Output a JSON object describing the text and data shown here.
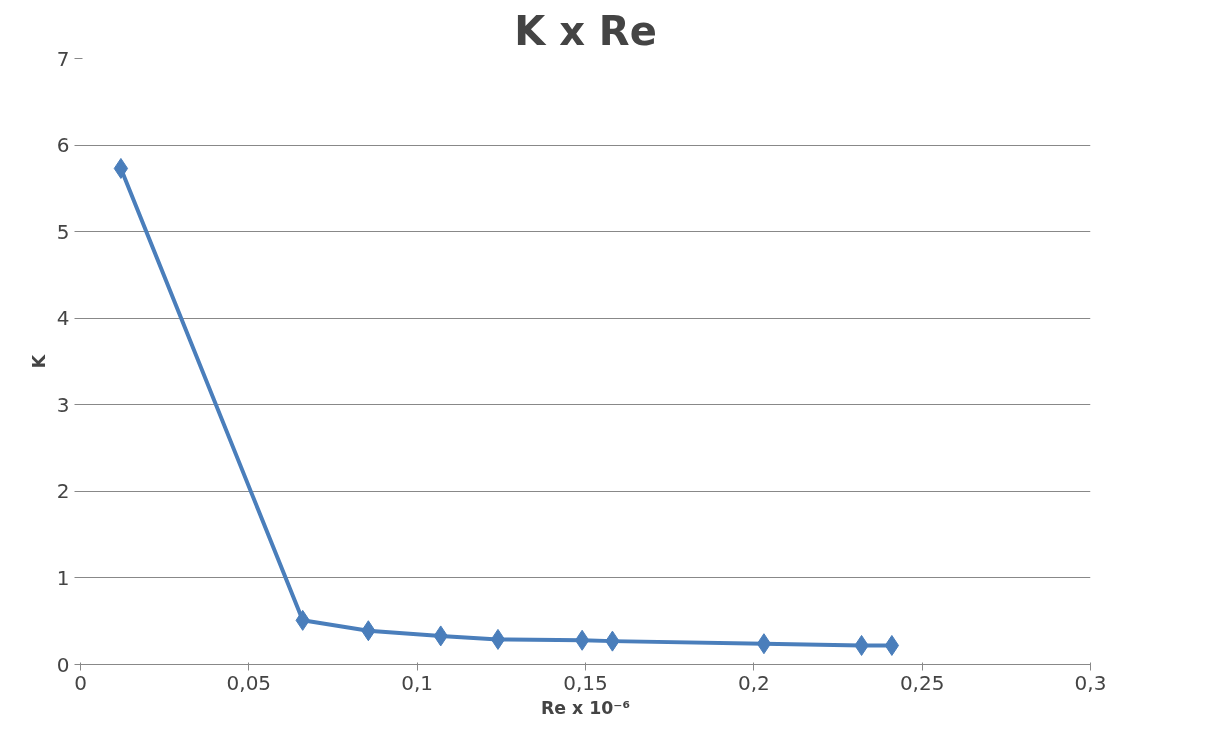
{
  "chart_data": {
    "type": "line",
    "title": "K x Re",
    "xlabel": "Re x 10⁻⁶",
    "ylabel": "K",
    "x": [
      0.012,
      0.066,
      0.0855,
      0.107,
      0.124,
      0.149,
      0.158,
      0.203,
      0.232,
      0.241
    ],
    "series": [
      {
        "color": "#4a7ebb",
        "values": [
          5.73,
          0.51,
          0.39,
          0.33,
          0.29,
          0.28,
          0.27,
          0.24,
          0.22,
          0.22
        ]
      }
    ],
    "xlim": [
      0,
      0.3
    ],
    "xticks": [
      0,
      {
        "value": 0.05,
        "label": "0,05"
      },
      {
        "value": 0.1,
        "label": "0,1"
      },
      {
        "value": 0.15,
        "label": "0,15"
      },
      {
        "value": 0.2,
        "label": "0,2"
      },
      {
        "value": 0.25,
        "label": "0,25"
      },
      {
        "value": 0.3,
        "label": "0,3"
      }
    ],
    "ylim": [
      0,
      7
    ],
    "yticks": [
      0,
      1,
      2,
      3,
      4,
      5,
      6,
      7
    ],
    "grid": "y",
    "marker": "diamond",
    "line_style": "solid"
  }
}
